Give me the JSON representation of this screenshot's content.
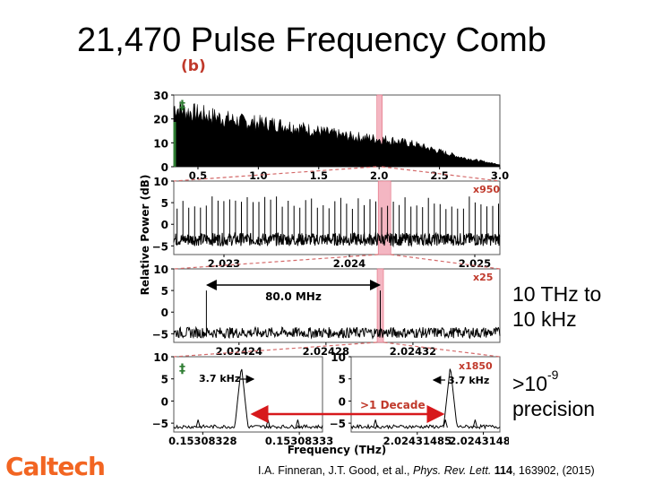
{
  "slide": {
    "title": "21,470 Pulse Frequency Comb",
    "panel_label": "(b)",
    "range_line1": "10 THz to",
    "range_line2": "10 kHz",
    "precision_base": ">10",
    "precision_exp": "-9",
    "precision_word": "precision",
    "logo_text": "Caltech",
    "citation": {
      "authors": "I.A. Finneran, J.T. Good, et al., ",
      "journal": "Phys. Rev. Lett.",
      "volume": "114",
      "rest": ", 163902, (2015)"
    }
  },
  "colors": {
    "highlight": "#f4b6c2",
    "highlight_edge": "#e36b7d",
    "zoom_red": "#c0392b",
    "marker_green": "#2e7d32",
    "decade_arrow": "#d7191c",
    "logo_orange": "#f26522"
  },
  "chart_data": [
    {
      "type": "line",
      "panel": 1,
      "ylabel": "Relative Power (dB)",
      "xlim": [
        0.3,
        3.0
      ],
      "ylim": [
        0,
        30
      ],
      "x_ticks": [
        "0.5",
        "1.0",
        "1.5",
        "2.0",
        "2.5",
        "3.0"
      ],
      "x_tick_values": [
        0.5,
        1.0,
        1.5,
        2.0,
        2.5,
        3.0
      ],
      "y_ticks": [
        "30",
        "20",
        "10",
        "0"
      ],
      "y_tick_values": [
        30,
        20,
        10,
        0
      ],
      "envelope": {
        "x": [
          0.3,
          0.4,
          0.5,
          0.7,
          0.9,
          1.1,
          1.3,
          1.5,
          1.7,
          1.9,
          2.1,
          2.3,
          2.5,
          2.7,
          2.9,
          3.0
        ],
        "y": [
          27,
          25,
          24,
          22,
          20,
          19.5,
          18,
          16,
          14,
          13,
          12,
          10,
          7,
          4,
          2,
          1
        ]
      },
      "highlight_x": 2.0,
      "marker": "‡"
    },
    {
      "type": "line",
      "panel": 2,
      "xlim": [
        2.0226,
        2.0252
      ],
      "ylim": [
        -7,
        10
      ],
      "x_ticks": [
        "2.023",
        "2.024",
        "2.025"
      ],
      "x_tick_values": [
        2.023,
        2.024,
        2.025
      ],
      "y_ticks": [
        "10",
        "5",
        "0",
        "−5"
      ],
      "y_tick_values": [
        10,
        5,
        0,
        -5
      ],
      "peak_spacing": 4.66e-05,
      "peak_height": 5,
      "noise_floor": -5,
      "highlight_x": 2.02428,
      "annotation": "x950"
    },
    {
      "type": "line",
      "panel": 3,
      "xlim": [
        2.02421,
        2.02436
      ],
      "ylim": [
        -7,
        10
      ],
      "x_ticks": [
        "2.02424",
        "2.02428",
        "2.02432"
      ],
      "x_tick_values": [
        2.02424,
        2.02428,
        2.02432
      ],
      "y_ticks": [
        "10",
        "5",
        "0",
        "−5"
      ],
      "y_tick_values": [
        10,
        5,
        0,
        -5
      ],
      "peaks_x": [
        2.024225,
        2.024305
      ],
      "peak_height": 5,
      "noise_floor": -6,
      "spacing_label": "80.0 MHz",
      "highlight_x": 2.024305,
      "annotation": "x25"
    },
    {
      "type": "line",
      "panel": "4a",
      "xlim": [
        0.153083265,
        0.153083342
      ],
      "ylim": [
        -7,
        10
      ],
      "x_ticks": [
        "0.15308328",
        "0.15308333"
      ],
      "x_tick_values": [
        0.15308328,
        0.15308333
      ],
      "y_ticks": [
        "10",
        "5",
        "0",
        "−5"
      ],
      "y_tick_values": [
        10,
        5,
        0,
        -5
      ],
      "peak_x": 0.1530833,
      "peak_height": 8,
      "linewidth_label": "3.7 kHz",
      "marker": "‡"
    },
    {
      "type": "line",
      "panel": "4b",
      "xlim": [
        2.02431481,
        2.0243149
      ],
      "ylim": [
        -7,
        10
      ],
      "x_ticks": [
        "2.02431485",
        "2.02431489"
      ],
      "x_tick_values": [
        2.02431485,
        2.02431489
      ],
      "y_ticks": [
        "10",
        "5",
        "0",
        "−5"
      ],
      "y_tick_values": [
        10,
        5,
        0,
        -5
      ],
      "peak_x": 2.02431487,
      "peak_height": 8,
      "linewidth_label": "3.7 kHz",
      "annotation": "x1850",
      "decade_label": ">1 Decade",
      "xlabel": "Frequency (THz)"
    }
  ]
}
